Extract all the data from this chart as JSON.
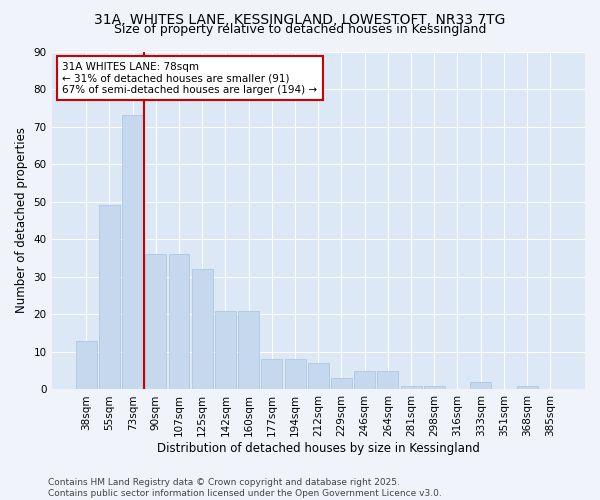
{
  "title_line1": "31A, WHITES LANE, KESSINGLAND, LOWESTOFT, NR33 7TG",
  "title_line2": "Size of property relative to detached houses in Kessingland",
  "xlabel": "Distribution of detached houses by size in Kessingland",
  "ylabel": "Number of detached properties",
  "categories": [
    "38sqm",
    "55sqm",
    "73sqm",
    "90sqm",
    "107sqm",
    "125sqm",
    "142sqm",
    "160sqm",
    "177sqm",
    "194sqm",
    "212sqm",
    "229sqm",
    "246sqm",
    "264sqm",
    "281sqm",
    "298sqm",
    "316sqm",
    "333sqm",
    "351sqm",
    "368sqm",
    "385sqm"
  ],
  "values": [
    13,
    49,
    73,
    36,
    36,
    32,
    21,
    21,
    8,
    8,
    7,
    3,
    5,
    5,
    1,
    1,
    0,
    2,
    0,
    1,
    0
  ],
  "bar_color": "#c5d8ed",
  "bar_edge_color": "#a8c4dc",
  "vline_color": "#cc0000",
  "vline_index": 2,
  "annotation_text": "31A WHITES LANE: 78sqm\n← 31% of detached houses are smaller (91)\n67% of semi-detached houses are larger (194) →",
  "annotation_box_facecolor": "#ffffff",
  "annotation_box_edgecolor": "#cc0000",
  "ylim": [
    0,
    90
  ],
  "yticks": [
    0,
    10,
    20,
    30,
    40,
    50,
    60,
    70,
    80,
    90
  ],
  "fig_bg_color": "#f0f4fa",
  "ax_bg_color": "#dce8f5",
  "grid_color": "#ffffff",
  "title_fontsize": 10,
  "subtitle_fontsize": 9,
  "axis_label_fontsize": 8.5,
  "tick_fontsize": 7.5,
  "annotation_fontsize": 7.5,
  "footer_fontsize": 6.5,
  "footer_text": "Contains HM Land Registry data © Crown copyright and database right 2025.\nContains public sector information licensed under the Open Government Licence v3.0."
}
